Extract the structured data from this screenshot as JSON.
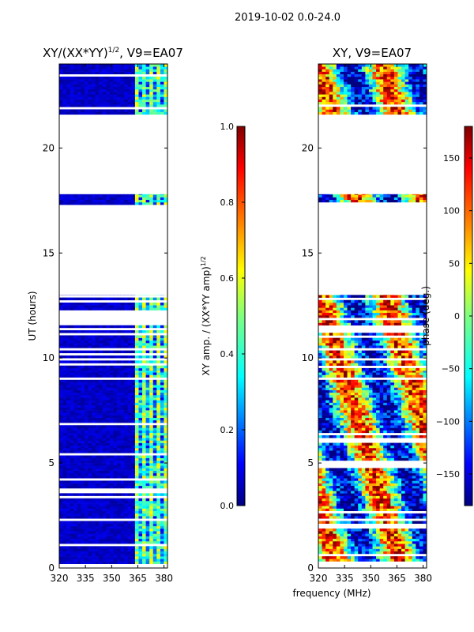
{
  "suptitle": "2019-10-02 0.0-24.0",
  "shared_xlabel": "frequency (MHz)",
  "colors": {
    "jet": [
      "#00007f",
      "#0000ff",
      "#007fff",
      "#00ffff",
      "#7fff7f",
      "#ffff00",
      "#ff7f00",
      "#ff0000",
      "#7f0000"
    ]
  },
  "chart_data": [
    {
      "type": "heatmap",
      "title_main": "XY/(XX*YY)",
      "title_sup": "1/2",
      "title_tail": ", V9=EA07",
      "xlabel": "",
      "ylabel": "UT (hours)",
      "xlim": [
        320,
        382
      ],
      "ylim": [
        0,
        24
      ],
      "xticks": [
        320,
        335,
        350,
        365,
        380
      ],
      "yticks": [
        0,
        5,
        10,
        15,
        20
      ],
      "colorbar": {
        "label": "XY amp. / (XX*YY amp)",
        "label_sup": "1/2",
        "min": 0.0,
        "max": 1.0,
        "ticks": [
          "0.0",
          "0.2",
          "0.4",
          "0.6",
          "0.8",
          "1.0"
        ]
      },
      "data_blocks_hours": [
        [
          0.2,
          9.4
        ],
        [
          9.4,
          13.0
        ],
        [
          17.3,
          17.8
        ],
        [
          21.6,
          24.0
        ]
      ],
      "high_value_band_mhz": [
        362,
        382
      ],
      "description_values": {
        "background_level": 0.05,
        "band_level": 0.45
      }
    },
    {
      "type": "heatmap",
      "title_main": "XY, V9=EA07",
      "xlabel": "",
      "ylabel": "",
      "xlim": [
        320,
        382
      ],
      "ylim": [
        0,
        24
      ],
      "xticks": [
        320,
        335,
        350,
        365,
        380
      ],
      "yticks": [
        0,
        5,
        10,
        15,
        20
      ],
      "colorbar": {
        "label": "phase (deg.)",
        "min": -180,
        "max": 180,
        "ticks": [
          "150",
          "100",
          "50",
          "0",
          "−50",
          "−100",
          "−150"
        ]
      },
      "data_blocks_hours": [
        [
          0.2,
          9.4
        ],
        [
          9.4,
          13.0
        ],
        [
          17.3,
          17.8
        ],
        [
          21.6,
          24.0
        ]
      ]
    }
  ]
}
